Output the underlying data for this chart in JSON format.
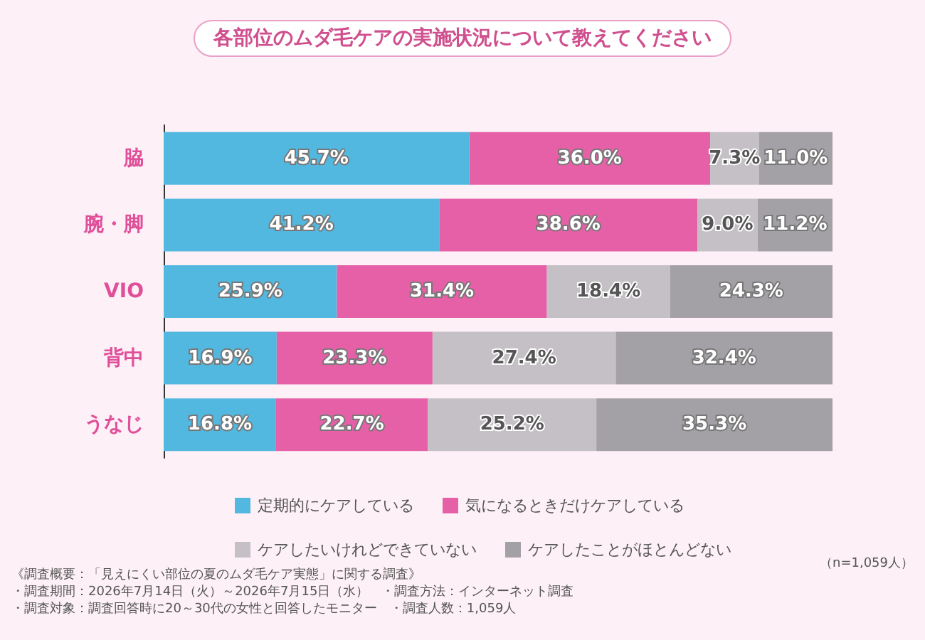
{
  "chart_data": {
    "type": "bar",
    "title": "各部位のムダ毛ケアの実施状況について教えてください",
    "orientation": "horizontal",
    "stacked": true,
    "categories": [
      "脇",
      "腕・脚",
      "VIO",
      "背中",
      "うなじ"
    ],
    "xlim": [
      0,
      100
    ],
    "tick_labels": "y",
    "legend": "bottom",
    "grid": false,
    "series": [
      {
        "name": "定期的にケアしている",
        "color": "#52b8e0",
        "values": [
          45.7,
          41.2,
          25.9,
          16.9,
          16.8
        ],
        "value_labels": [
          "45.7%",
          "41.2%",
          "25.9%",
          "16.9%",
          "16.8%"
        ]
      },
      {
        "name": "気になるときだけケアしている",
        "color": "#e660a8",
        "values": [
          36.0,
          38.6,
          31.4,
          23.3,
          22.7
        ],
        "value_labels": [
          "36.0%",
          "38.6%",
          "31.4%",
          "23.3%",
          "22.7%"
        ]
      },
      {
        "name": "ケアしたいけれどできていない",
        "color": "#c5c0c6",
        "values": [
          7.3,
          9.0,
          18.4,
          27.4,
          25.2
        ],
        "value_labels": [
          "7.3%",
          "9.0%",
          "18.4%",
          "27.4%",
          "25.2%"
        ]
      },
      {
        "name": "ケアしたことがほとんどない",
        "color": "#a3a0a6",
        "values": [
          11.0,
          11.2,
          24.3,
          32.4,
          35.3
        ],
        "value_labels": [
          "11.0%",
          "11.2%",
          "24.3%",
          "32.4%",
          "35.3%"
        ]
      }
    ],
    "annotations": [
      "（n=1,059人）",
      "《調査概要：「見えにくい部位の夏のムダ毛ケア実態」に関する調査》",
      "・調査期間：2026年7月14日（火）～2026年7月15日（水）　・調査方法：インターネット調査",
      "・調査対象：調査回答時に20～30代の女性と回答したモニター　・調査人数：1,059人"
    ]
  }
}
